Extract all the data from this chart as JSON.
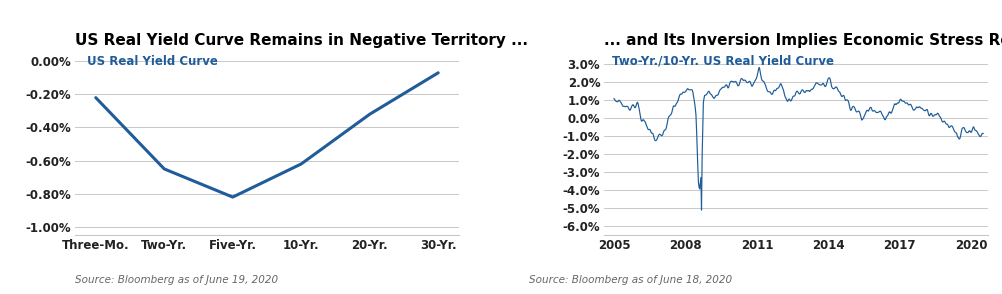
{
  "left_chart": {
    "title": "US Real Yield Curve Remains in Negative Territory ...",
    "legend_label": "US Real Yield Curve",
    "source": "Source: Bloomberg as of June 19, 2020",
    "categories": [
      "Three-Mo.",
      "Two-Yr.",
      "Five-Yr.",
      "10-Yr.",
      "20-Yr.",
      "30-Yr."
    ],
    "values": [
      -0.0022,
      -0.0065,
      -0.0082,
      -0.0062,
      -0.0032,
      -0.0007
    ],
    "ylim": [
      -0.0105,
      0.0005
    ],
    "ytick_vals": [
      0.0,
      -0.002,
      -0.004,
      -0.006,
      -0.008,
      -0.01
    ],
    "ytick_labels": [
      "0.00%",
      "-0.20%",
      "-0.40%",
      "-0.60%",
      "-0.80%",
      "-1.00%"
    ],
    "line_color": "#1f5c99",
    "title_fontsize": 11,
    "label_fontsize": 8.5
  },
  "right_chart": {
    "title": "... and Its Inversion Implies Economic Stress Remains",
    "legend_label": "Two-Yr./10-Yr. US Real Yield Curve",
    "source": "Source: Bloomberg as of June 18, 2020",
    "ylim": [
      -0.065,
      0.036
    ],
    "ytick_vals": [
      0.03,
      0.02,
      0.01,
      0.0,
      -0.01,
      -0.02,
      -0.03,
      -0.04,
      -0.05,
      -0.06
    ],
    "ytick_labels": [
      "3.0%",
      "2.0%",
      "1.0%",
      "0.0%",
      "-1.0%",
      "-2.0%",
      "-3.0%",
      "-4.0%",
      "-5.0%",
      "-6.0%"
    ],
    "xticks": [
      2005,
      2008,
      2011,
      2014,
      2017,
      2020
    ],
    "xlim": [
      2004.6,
      2020.7
    ],
    "line_color": "#1f5c99",
    "title_fontsize": 11,
    "label_fontsize": 8.5
  },
  "bg_color": "#ffffff",
  "grid_color": "#c8c8c8",
  "text_color": "#222222",
  "source_color": "#666666",
  "title_color": "#000000",
  "legend_color": "#1f5c99"
}
